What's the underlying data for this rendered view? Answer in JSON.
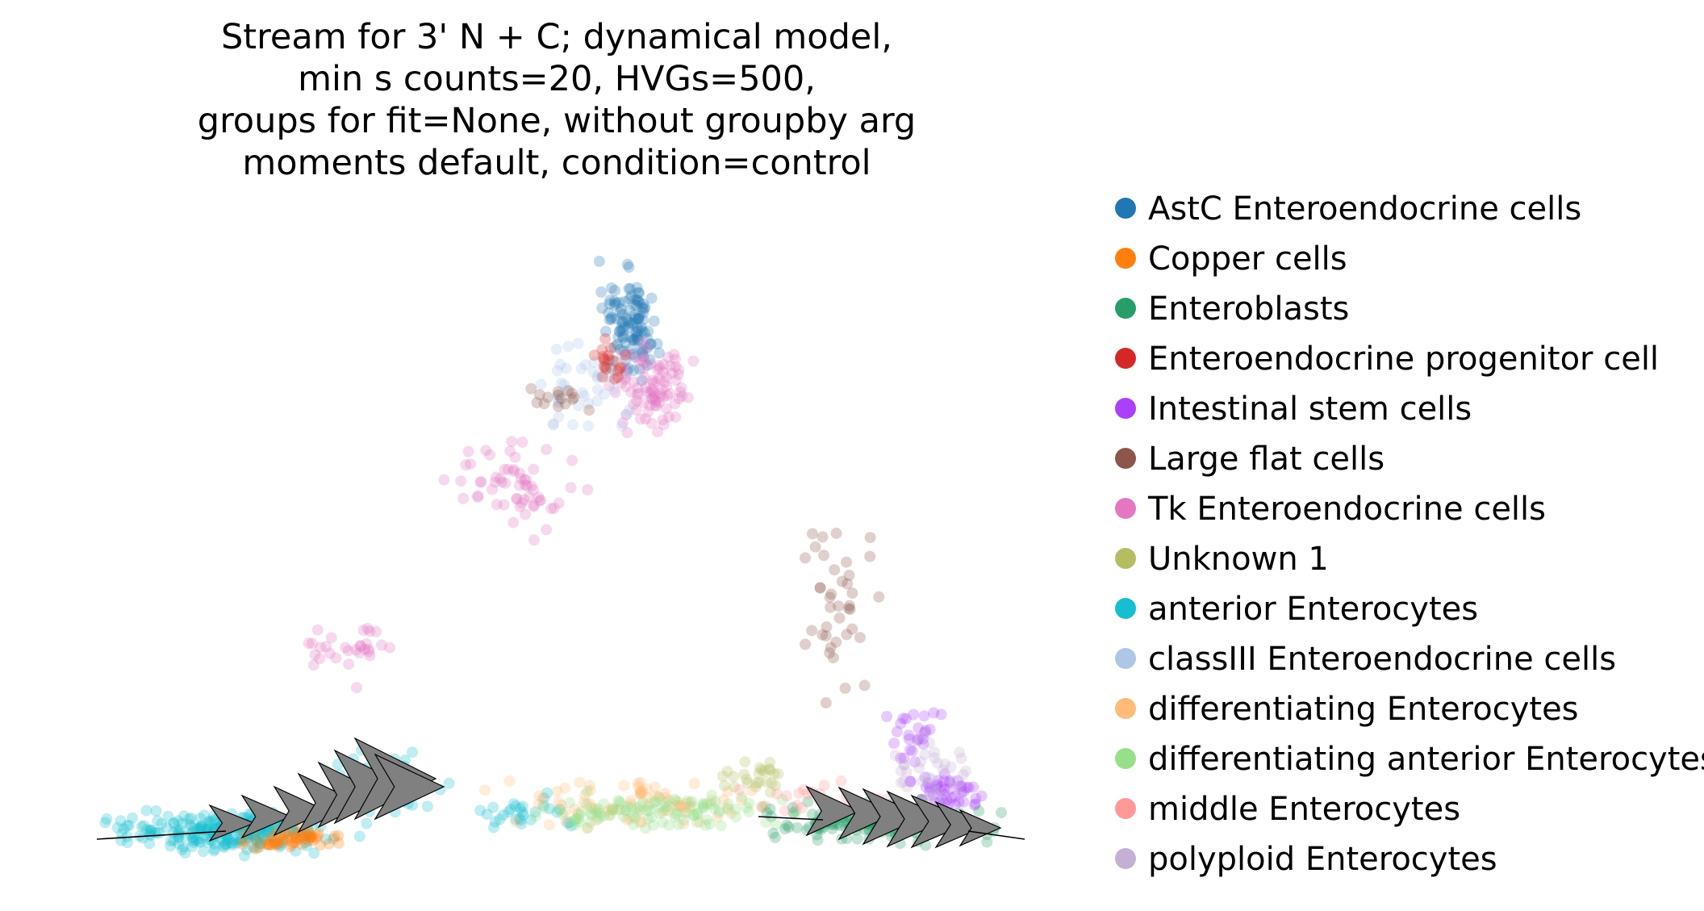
{
  "chart_data": {
    "type": "scatter",
    "title_lines": [
      "Stream for 3' N + C; dynamical model,",
      "min s counts=20, HVGs=500,",
      "groups for fit=None, without groupby arg",
      "moments default, condition=control"
    ],
    "xlabel": "",
    "ylabel": "",
    "axes_visible": false,
    "grid": false,
    "legend_placement": "right",
    "series": [
      {
        "name": "AstC Enteroendocrine cells",
        "color": "#1f77b4"
      },
      {
        "name": "Copper cells",
        "color": "#ff7f0e"
      },
      {
        "name": "Enteroblasts",
        "color": "#279e68"
      },
      {
        "name": "Enteroendocrine progenitor cell",
        "color": "#d62728"
      },
      {
        "name": "Intestinal stem cells",
        "color": "#aa40fc"
      },
      {
        "name": "Large flat cells",
        "color": "#8c564b"
      },
      {
        "name": "Tk Enteroendocrine cells",
        "color": "#e377c2"
      },
      {
        "name": "Unknown 1",
        "color": "#b5bd61"
      },
      {
        "name": "anterior Enterocytes",
        "color": "#17becf"
      },
      {
        "name": "classIII Enteroendocrine cells",
        "color": "#aec7e8"
      },
      {
        "name": "differentiating Enterocytes",
        "color": "#ffbb78"
      },
      {
        "name": "differentiating anterior Enterocytes",
        "color": "#98df8a"
      },
      {
        "name": "middle Enterocytes",
        "color": "#ff9896"
      },
      {
        "name": "polyploid Enterocytes",
        "color": "#c5b0d5"
      }
    ],
    "stream_arrow_color": "#808080"
  }
}
